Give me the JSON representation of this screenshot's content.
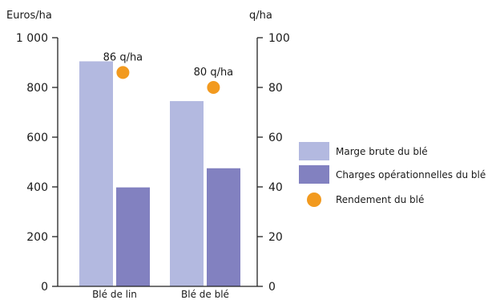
{
  "chart_data": {
    "type": "bar",
    "categories": [
      "Blé de lin",
      "Blé de blé"
    ],
    "series": [
      {
        "name": "Marge brute du blé",
        "axis": "left",
        "color": "#b3b9e0",
        "values": [
          905,
          745
        ]
      },
      {
        "name": "Charges opérationnelles du blé",
        "axis": "left",
        "color": "#8281c0",
        "values": [
          398,
          475
        ]
      },
      {
        "name": "Rendement du blé",
        "axis": "right",
        "marker": "dot",
        "color": "#f29a1f",
        "values": [
          86,
          80
        ],
        "labels": [
          "86 q/ha",
          "80 q/ha"
        ]
      }
    ],
    "y_left": {
      "label": "Euros/ha",
      "ylim": [
        0,
        1000
      ],
      "ticks": [
        0,
        200,
        400,
        600,
        800,
        1000
      ],
      "tick_labels": [
        "0",
        "200",
        "400",
        "600",
        "800",
        "1 000"
      ]
    },
    "y_right": {
      "label": "q/ha",
      "ylim": [
        0,
        100
      ],
      "ticks": [
        0,
        20,
        40,
        60,
        80,
        100
      ],
      "tick_labels": [
        "0",
        "20",
        "40",
        "60",
        "80",
        "100"
      ]
    },
    "legend_position": "right",
    "grid": false
  }
}
